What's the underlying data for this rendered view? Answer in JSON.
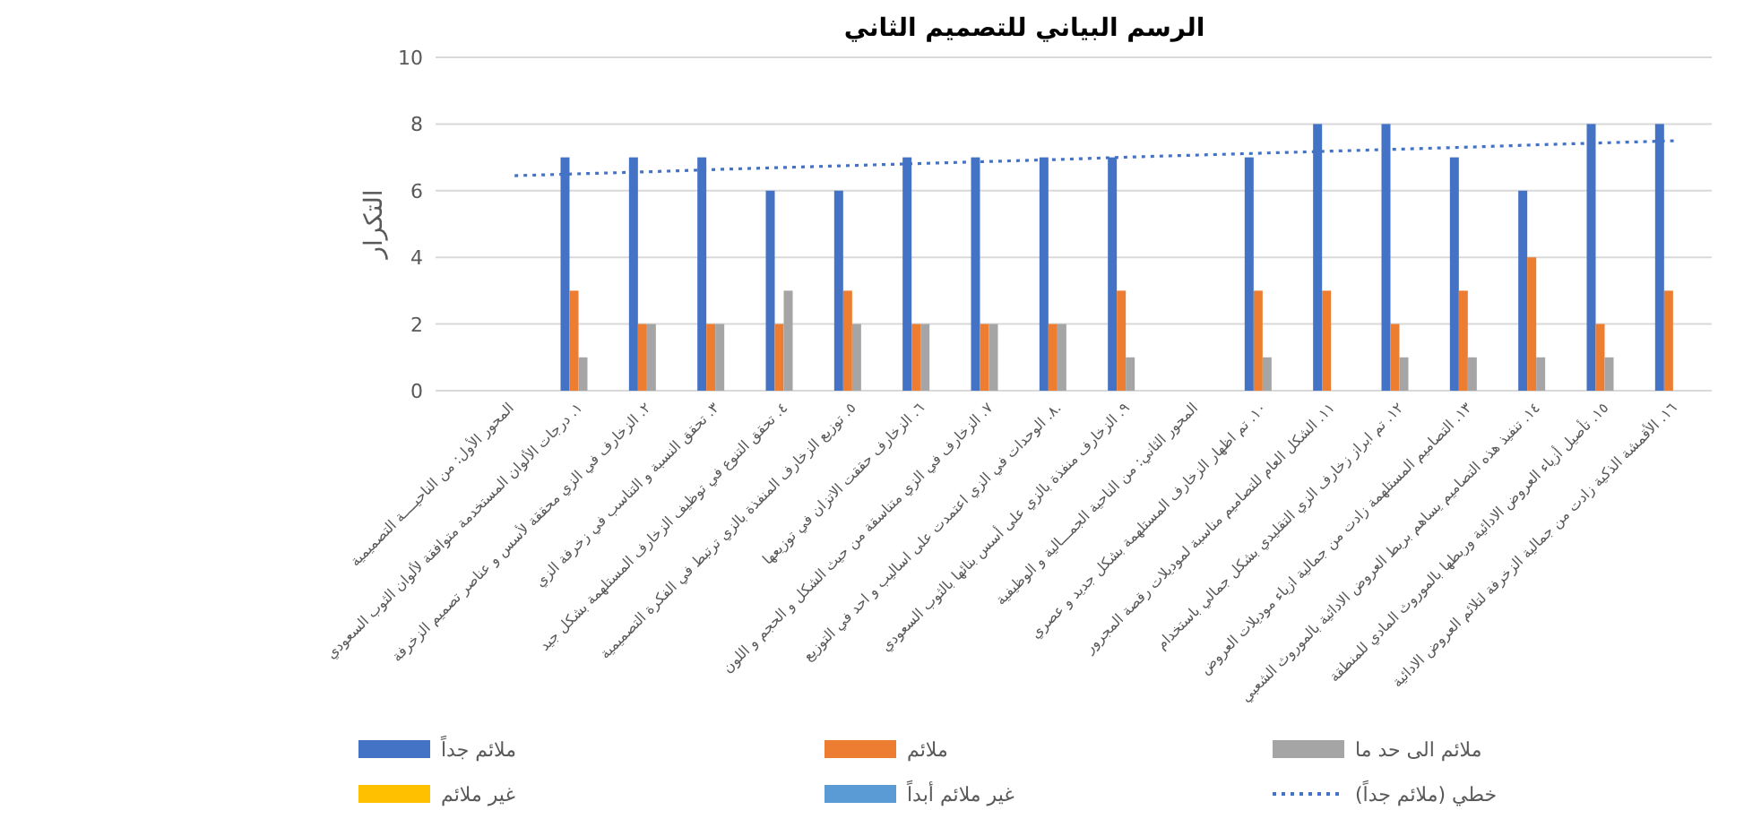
{
  "chart_data": {
    "type": "bar",
    "title": "الرسم البياني للتصميم الثاني",
    "ylabel": "التكرار",
    "categories": [
      "المحور الأول: من الناحيــــة التصميمية",
      "١. درجات الألوان المستخدمة متوافقة لألوان الثوب السعودي",
      "٢. الزخارف في الزي محققة لأسس و عناصر تصميم الزخرفة",
      "٣. تحقق النسبة و التناسب في زخرفة الزي",
      "٤. تحقق التنوع في توظيف الزخارف المستلهمة بشكل جيد",
      "٥. توزيع الزخارف المنفذة بالزي ترتبط في الفكرة التصميمية",
      "٦. الزخارف حققت الاتزان في توزيعها",
      "٧. الزخارف في الزي متناسقة من حيث الشكل و الحجم و اللون",
      "٨. الوحدات في الزي اعتمدت على اساليب و احد في التوزيع.",
      "٩. الزخارف منفذة بالزي على أسس بنائها بالثوب السعودي",
      "المحور الثاني: من الناحية الجمـــالية و الوظيفية",
      "١٠. تم اظهار الزخارف المستلهمة بشكل جديد و عصري",
      "١١. الشكل العام للتصاميم مناسبة لموديلات رقصة المجرور",
      "١٢. تم ابراز زخارف الزي التقليدي بشكل جمالي باستخدام",
      "١٣. التصاميم المستلهمة زادت من جمالية ازياء موديلات العروض",
      "١٤. تنفيذ هذه التصاميم يساهم بربط العروض الادائية بالموروث الشعبي",
      "١٥. تأصيل أزياء العروض الادائية وربطها بالموروث المادي للمنطقة",
      "١٦. الأقمشة الذكية زادت من جمالية الزخرفة لتلائم العروض الادائية"
    ],
    "series": [
      {
        "name": "ملائم جداً",
        "color": "#4472c4",
        "values": [
          null,
          7,
          7,
          7,
          6,
          6,
          7,
          7,
          7,
          7,
          null,
          7,
          8,
          8,
          7,
          6,
          8,
          8
        ]
      },
      {
        "name": "ملائم",
        "color": "#ed7d31",
        "values": [
          null,
          3,
          2,
          2,
          2,
          3,
          2,
          2,
          2,
          3,
          null,
          3,
          3,
          2,
          3,
          4,
          2,
          3
        ]
      },
      {
        "name": "ملائم الى حد ما",
        "color": "#a5a5a5",
        "values": [
          null,
          1,
          2,
          2,
          3,
          2,
          2,
          2,
          2,
          1,
          null,
          1,
          null,
          1,
          1,
          1,
          1,
          null
        ]
      },
      {
        "name": "غير ملائم",
        "color": "#ffc000",
        "values": [
          null,
          null,
          null,
          null,
          null,
          null,
          null,
          null,
          null,
          null,
          null,
          null,
          null,
          null,
          null,
          null,
          null,
          null
        ]
      },
      {
        "name": "غير ملائم أبداً",
        "color": "#5b9bd5",
        "values": [
          null,
          null,
          null,
          null,
          null,
          null,
          null,
          null,
          null,
          null,
          null,
          null,
          null,
          null,
          null,
          null,
          null,
          null
        ]
      },
      {
        "name": "خطي (ملائم جداً)",
        "type": "line",
        "line_style": "dotted",
        "color": "#4472c4",
        "values": [
          6.45,
          6.51,
          6.57,
          6.64,
          6.7,
          6.76,
          6.82,
          6.88,
          6.94,
          7.01,
          7.07,
          7.13,
          7.19,
          7.25,
          7.31,
          7.38,
          7.44,
          7.5
        ]
      }
    ],
    "ylim": [
      0,
      10
    ],
    "yticks": [
      0,
      2,
      4,
      6,
      8,
      10
    ],
    "grid": "y",
    "legend": "bottom"
  }
}
